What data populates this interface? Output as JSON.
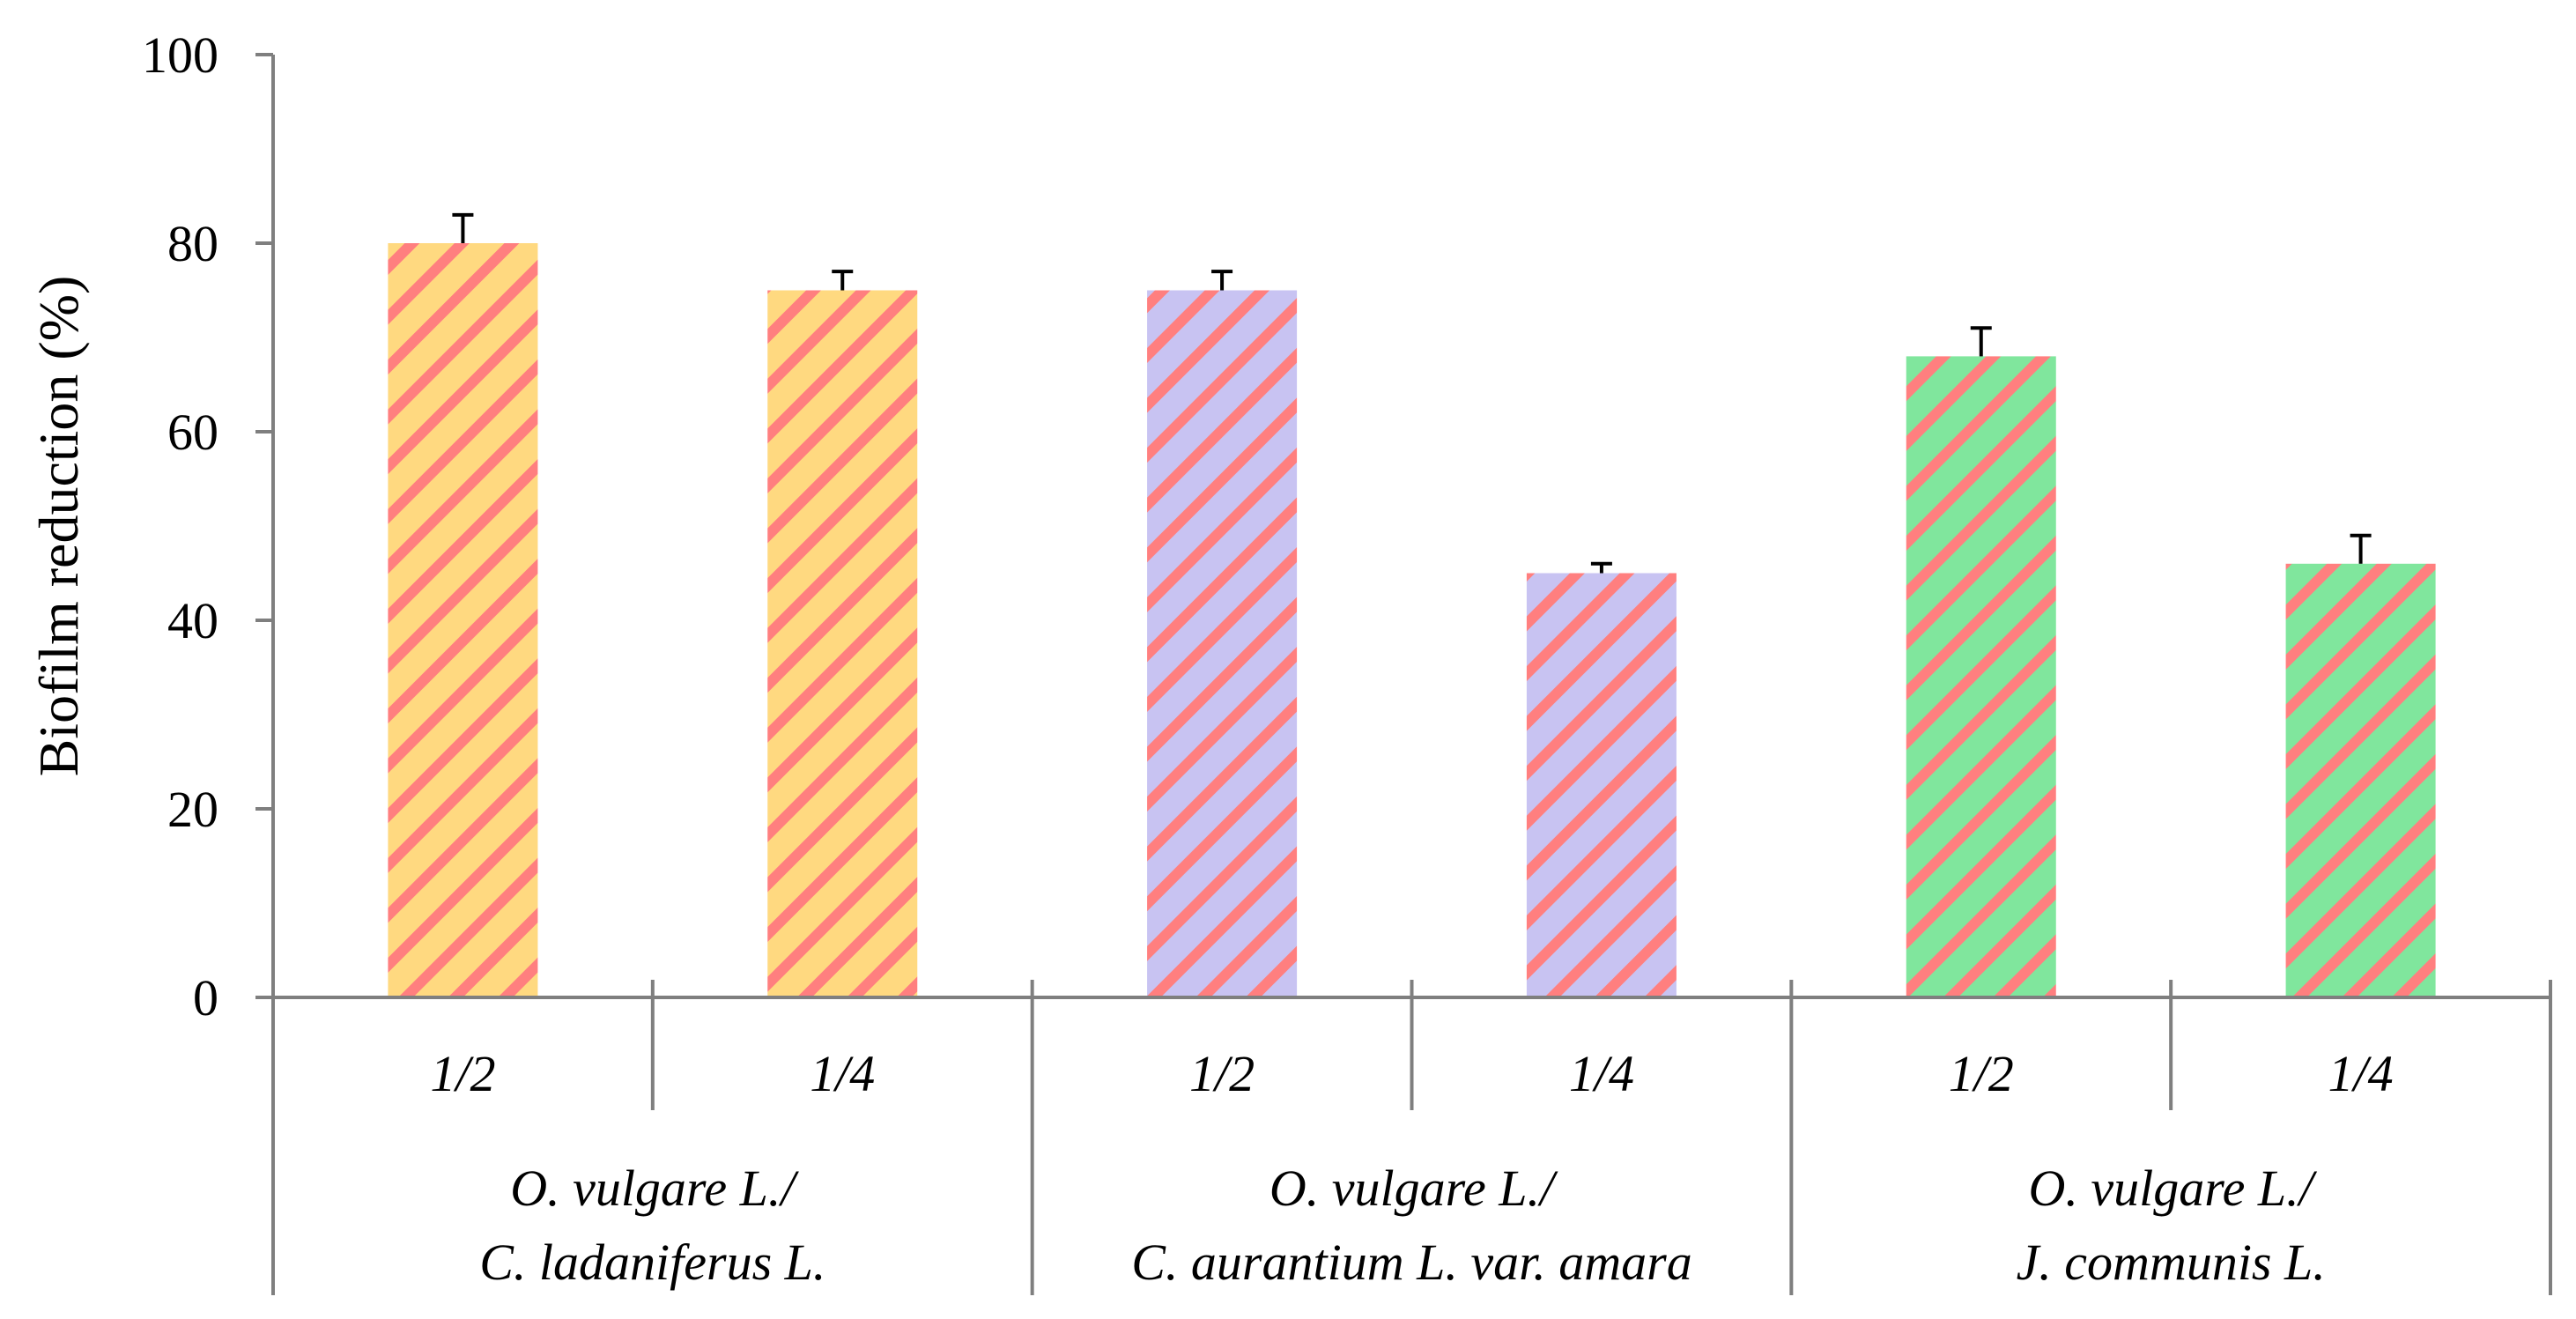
{
  "chart_data": {
    "type": "bar",
    "title": "",
    "xlabel": "",
    "ylabel": "Biofilm reduction (%)",
    "ylim": [
      0,
      100
    ],
    "yticks": [
      0,
      20,
      40,
      60,
      80,
      100
    ],
    "grid": false,
    "groups": [
      {
        "label_line1": "O. vulgare L./",
        "label_line2": "C. ladaniferus L.",
        "fill_color": "#ffd980",
        "stripe_color": "#ff7f7f",
        "bars": [
          {
            "category": "1/2",
            "value": 80,
            "error": 3
          },
          {
            "category": "1/4",
            "value": 75,
            "error": 2
          }
        ]
      },
      {
        "label_line1": "O. vulgare L./",
        "label_line2": "C.  aurantium L. var. amara",
        "fill_color": "#c8c3f2",
        "stripe_color": "#ff7f7f",
        "bars": [
          {
            "category": "1/2",
            "value": 75,
            "error": 2
          },
          {
            "category": "1/4",
            "value": 45,
            "error": 1
          }
        ]
      },
      {
        "label_line1": "O. vulgare L./",
        "label_line2": "J. communis L.",
        "fill_color": "#80e69d",
        "stripe_color": "#ff7f7f",
        "bars": [
          {
            "category": "1/2",
            "value": 68,
            "error": 3
          },
          {
            "category": "1/4",
            "value": 46,
            "error": 3
          }
        ]
      }
    ]
  }
}
